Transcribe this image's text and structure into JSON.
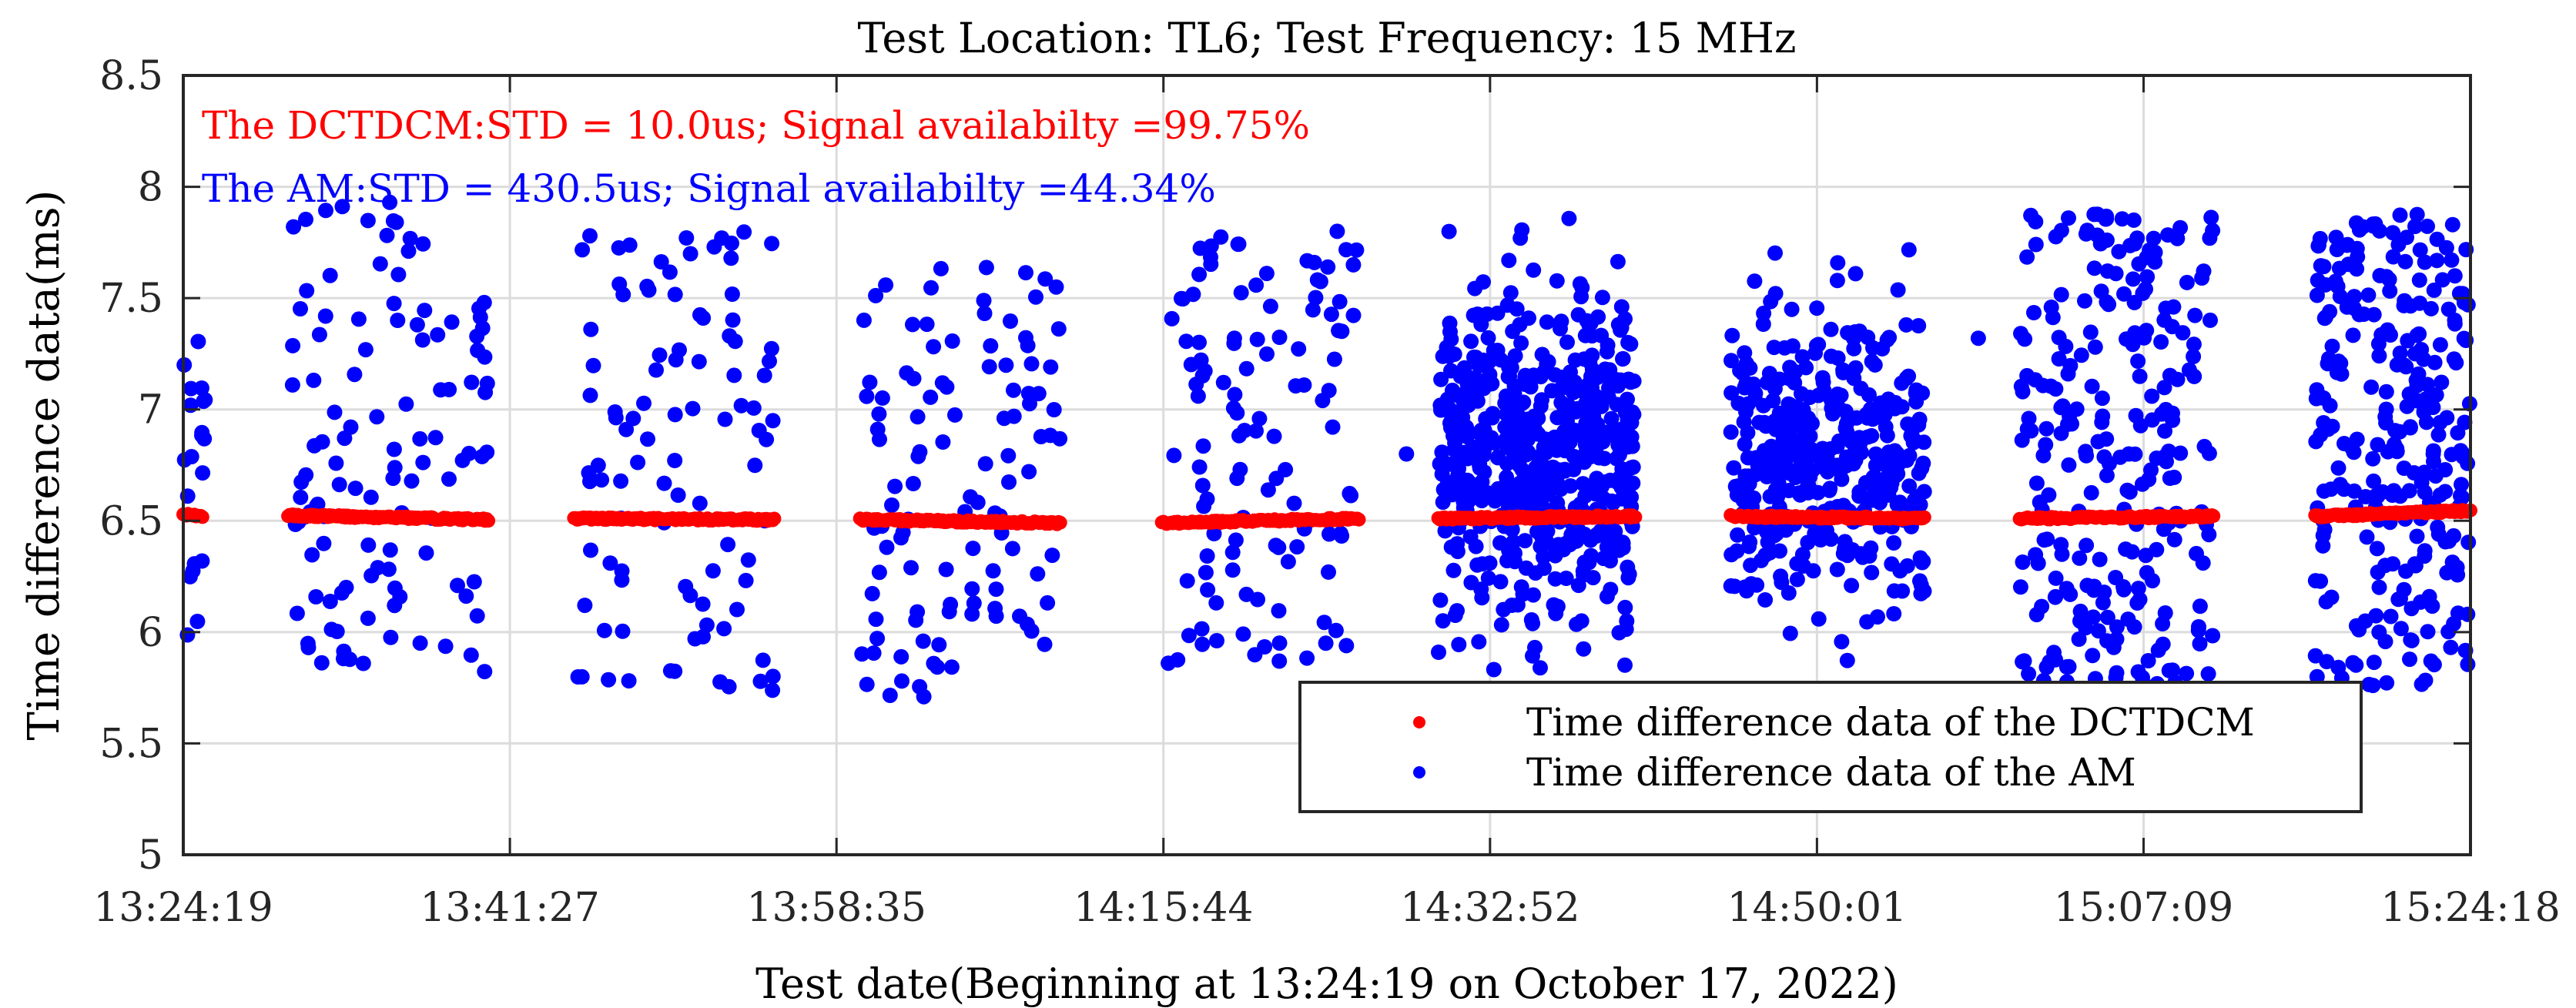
{
  "chart_data": {
    "type": "scatter",
    "title": "Test Location: TL6; Test Frequency: 15 MHz",
    "xlabel": "Test date(Beginning at 13:24:19 on October 17, 2022)",
    "ylabel": "Time difference data(ms)",
    "ylim": [
      5,
      8.5
    ],
    "xlim_seconds_from_start": [
      0,
      7199
    ],
    "grid": true,
    "x_ticks": [
      {
        "seconds": 0,
        "label": "13:24:19"
      },
      {
        "seconds": 1028,
        "label": "13:41:27"
      },
      {
        "seconds": 2056,
        "label": "13:58:35"
      },
      {
        "seconds": 3085,
        "label": "14:15:44"
      },
      {
        "seconds": 4113,
        "label": "14:32:52"
      },
      {
        "seconds": 5142,
        "label": "14:50:01"
      },
      {
        "seconds": 6170,
        "label": "15:07:09"
      },
      {
        "seconds": 7199,
        "label": "15:24:18"
      }
    ],
    "y_ticks": [
      {
        "value": 5,
        "label": "5"
      },
      {
        "value": 5.5,
        "label": "5.5"
      },
      {
        "value": 6,
        "label": "6"
      },
      {
        "value": 6.5,
        "label": "6.5"
      },
      {
        "value": 7,
        "label": "7"
      },
      {
        "value": 7.5,
        "label": "7.5"
      },
      {
        "value": 8,
        "label": "8"
      },
      {
        "value": 8.5,
        "label": "8.5"
      }
    ],
    "annotations": [
      {
        "text": "The DCTDCM:STD = 10.0us; Signal availabilty =99.75%",
        "color": "#ff0000"
      },
      {
        "text": "The AM:STD = 430.5us; Signal availabilty =44.34%",
        "color": "#0000ff"
      }
    ],
    "legend": {
      "position": "bottom-right",
      "entries": [
        {
          "label": "Time difference data of the DCTDCM",
          "color": "#ff0000"
        },
        {
          "label": "Time difference data of the AM",
          "color": "#0000ff"
        }
      ]
    },
    "series": [
      {
        "name": "Time difference data of the DCTDCM",
        "color": "#ff0000",
        "segments": [
          {
            "x_start": 0,
            "x_end": 60,
            "y_start": 6.53,
            "y_end": 6.52
          },
          {
            "x_start": 330,
            "x_end": 960,
            "y_start": 6.525,
            "y_end": 6.505
          },
          {
            "x_start": 1230,
            "x_end": 1860,
            "y_start": 6.51,
            "y_end": 6.505
          },
          {
            "x_start": 2130,
            "x_end": 2760,
            "y_start": 6.505,
            "y_end": 6.49
          },
          {
            "x_start": 3080,
            "x_end": 3700,
            "y_start": 6.49,
            "y_end": 6.51
          },
          {
            "x_start": 3950,
            "x_end": 4570,
            "y_start": 6.51,
            "y_end": 6.52
          },
          {
            "x_start": 4870,
            "x_end": 5480,
            "y_start": 6.52,
            "y_end": 6.51
          },
          {
            "x_start": 5780,
            "x_end": 6390,
            "y_start": 6.51,
            "y_end": 6.52
          },
          {
            "x_start": 6710,
            "x_end": 7199,
            "y_start": 6.52,
            "y_end": 6.545
          }
        ]
      },
      {
        "name": "Time difference data of the AM",
        "color": "#0000ff",
        "clusters": [
          {
            "x_start": 0,
            "x_end": 70,
            "count": 20,
            "y_min": 5.95,
            "y_max": 7.35
          },
          {
            "x_start": 330,
            "x_end": 960,
            "count": 115,
            "y_min": 5.8,
            "y_max": 7.95
          },
          {
            "x_start": 1230,
            "x_end": 1860,
            "count": 95,
            "y_min": 5.68,
            "y_max": 7.85
          },
          {
            "x_start": 2130,
            "x_end": 2760,
            "count": 110,
            "y_min": 5.7,
            "y_max": 7.65
          },
          {
            "x_start": 3080,
            "x_end": 3700,
            "count": 115,
            "y_min": 5.85,
            "y_max": 7.8
          },
          {
            "x_start": 3950,
            "x_end": 4570,
            "count": 560,
            "y_min": 5.82,
            "y_max": 7.88
          },
          {
            "x_start": 4870,
            "x_end": 5480,
            "count": 390,
            "y_min": 5.8,
            "y_max": 7.82
          },
          {
            "x_start": 5780,
            "x_end": 6390,
            "count": 250,
            "y_min": 5.75,
            "y_max": 7.88
          },
          {
            "x_start": 6710,
            "x_end": 7199,
            "count": 270,
            "y_min": 5.75,
            "y_max": 7.88
          }
        ],
        "isolated_points": [
          {
            "x": 1830,
            "y": 6.5
          },
          {
            "x": 3850,
            "y": 6.8
          },
          {
            "x": 5650,
            "y": 7.32
          },
          {
            "x": 7190,
            "y": 6.08
          },
          {
            "x": 7150,
            "y": 7.6
          }
        ]
      }
    ]
  }
}
